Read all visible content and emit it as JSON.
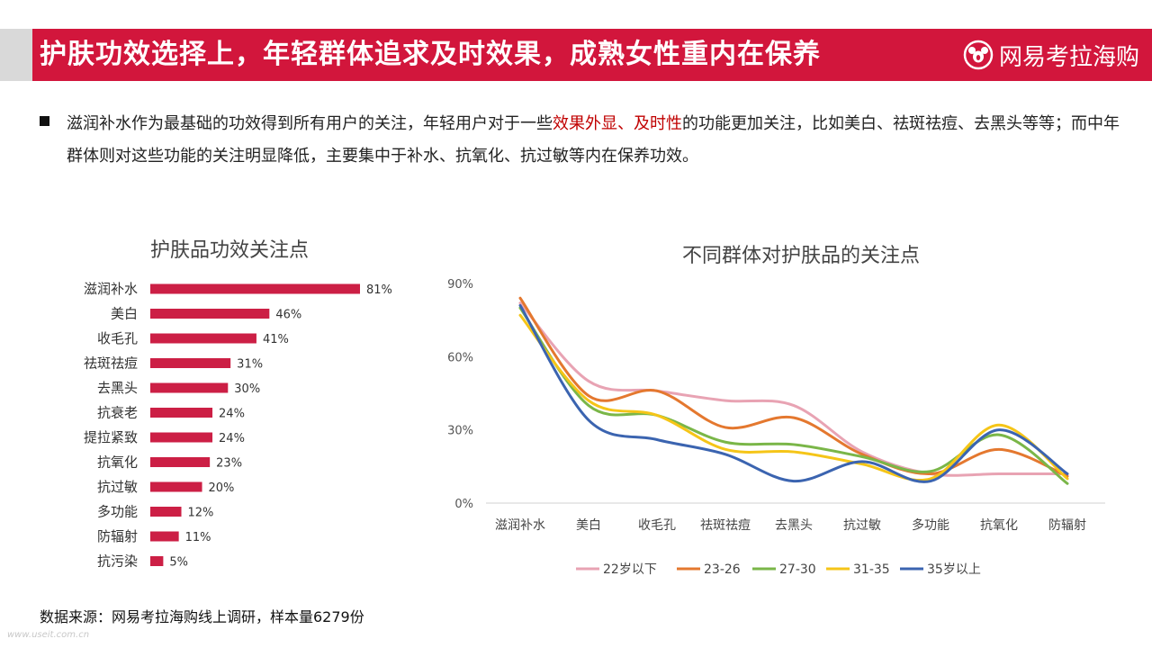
{
  "header": {
    "title": "护肤功效选择上，年轻群体追求及时效果，成熟女性重内在保养",
    "brand_name": "网易考拉海购",
    "brand_icon": "koala-icon"
  },
  "bullet": {
    "part1": "滋润补水作为最基础的功效得到所有用户的关注，年轻用户对于一些",
    "highlight": "效果外显、及时性",
    "part2": "的功能更加关注，比如美白、祛斑祛痘、去黑头等等；而中年群体则对这些功能的关注明显降低，主要集中于补水、抗氧化、抗过敏等内在保养功效。"
  },
  "source": "数据来源：网易考拉海购线上调研，样本量6279份",
  "watermark": "www.useit.com.cn",
  "colors": {
    "accent": "#d2163c",
    "bar": "#cc1f45"
  },
  "chart_data": [
    {
      "type": "bar",
      "orientation": "horizontal",
      "title": "护肤品功效关注点",
      "categories": [
        "滋润补水",
        "美白",
        "收毛孔",
        "祛斑祛痘",
        "去黑头",
        "抗衰老",
        "提拉紧致",
        "抗氧化",
        "抗过敏",
        "多功能",
        "防辐射",
        "抗污染"
      ],
      "values": [
        81,
        46,
        41,
        31,
        30,
        24,
        24,
        23,
        20,
        12,
        11,
        5
      ],
      "value_labels": [
        "81%",
        "46%",
        "41%",
        "31%",
        "30%",
        "24%",
        "24%",
        "23%",
        "20%",
        "12%",
        "11%",
        "5%"
      ],
      "xlim": [
        0,
        100
      ],
      "grid": false
    },
    {
      "type": "line",
      "smooth": true,
      "title": "不同群体对护肤品的关注点",
      "categories": [
        "滋润补水",
        "美白",
        "收毛孔",
        "祛斑祛痘",
        "去黑头",
        "抗过敏",
        "多功能",
        "抗氧化",
        "防辐射"
      ],
      "ylim": [
        0,
        90
      ],
      "yticks": [
        0,
        30,
        60,
        90
      ],
      "ytick_labels": [
        "0%",
        "30%",
        "60%",
        "90%"
      ],
      "legend": "bottom",
      "grid": false,
      "series": [
        {
          "name": "22岁以下",
          "color": "#e8a3b3",
          "values": [
            82,
            50,
            46,
            42,
            40,
            21,
            12,
            12,
            12
          ]
        },
        {
          "name": "23-26",
          "color": "#e4782f",
          "values": [
            84,
            44,
            46,
            31,
            35,
            20,
            12,
            22,
            11
          ]
        },
        {
          "name": "27-30",
          "color": "#7ab648",
          "values": [
            80,
            40,
            36,
            25,
            24,
            19,
            13,
            28,
            8
          ]
        },
        {
          "name": "31-35",
          "color": "#f5c518",
          "values": [
            77,
            42,
            36,
            22,
            21,
            16,
            10,
            32,
            10
          ]
        },
        {
          "name": "35岁以上",
          "color": "#3b64b0",
          "values": [
            81,
            34,
            26,
            20,
            9,
            17,
            9,
            30,
            12
          ]
        }
      ]
    }
  ]
}
